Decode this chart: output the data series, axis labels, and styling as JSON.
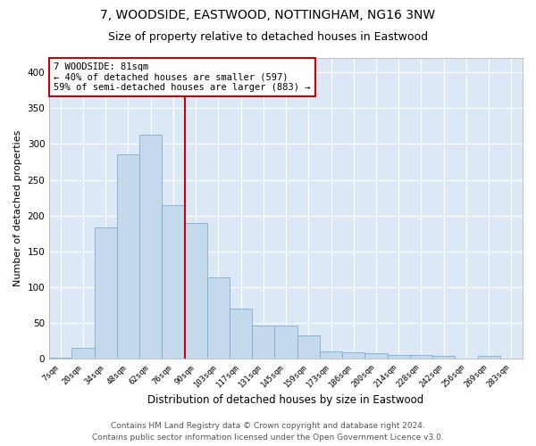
{
  "title1": "7, WOODSIDE, EASTWOOD, NOTTINGHAM, NG16 3NW",
  "title2": "Size of property relative to detached houses in Eastwood",
  "xlabel": "Distribution of detached houses by size in Eastwood",
  "ylabel": "Number of detached properties",
  "categories": [
    "7sqm",
    "20sqm",
    "34sqm",
    "48sqm",
    "62sqm",
    "76sqm",
    "90sqm",
    "103sqm",
    "117sqm",
    "131sqm",
    "145sqm",
    "159sqm",
    "173sqm",
    "186sqm",
    "200sqm",
    "214sqm",
    "228sqm",
    "242sqm",
    "256sqm",
    "269sqm",
    "283sqm"
  ],
  "values": [
    2,
    15,
    183,
    285,
    313,
    215,
    190,
    114,
    70,
    46,
    46,
    33,
    10,
    9,
    8,
    5,
    5,
    4,
    1,
    4,
    1
  ],
  "bar_color": "#c5d9ed",
  "bar_edge_color": "#7aadd4",
  "vline_color": "#cc0000",
  "annotation_text": "7 WOODSIDE: 81sqm\n← 40% of detached houses are smaller (597)\n59% of semi-detached houses are larger (883) →",
  "annotation_box_color": "#ffffff",
  "annotation_box_edge": "#cc0000",
  "ylim": [
    0,
    420
  ],
  "yticks": [
    0,
    50,
    100,
    150,
    200,
    250,
    300,
    350,
    400
  ],
  "background_color": "#dce8f5",
  "footer": "Contains HM Land Registry data © Crown copyright and database right 2024.\nContains public sector information licensed under the Open Government Licence v3.0.",
  "title1_fontsize": 10,
  "title2_fontsize": 9,
  "xlabel_fontsize": 8.5,
  "ylabel_fontsize": 8,
  "footer_fontsize": 6.5,
  "vline_x_index": 5
}
